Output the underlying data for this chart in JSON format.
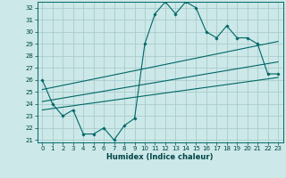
{
  "title": "",
  "xlabel": "Humidex (Indice chaleur)",
  "ylabel": "",
  "background_color": "#cce8e8",
  "grid_color": "#aacccc",
  "line_color": "#006666",
  "xlim": [
    -0.5,
    23.5
  ],
  "ylim": [
    20.8,
    32.5
  ],
  "yticks": [
    21,
    22,
    23,
    24,
    25,
    26,
    27,
    28,
    29,
    30,
    31,
    32
  ],
  "xticks": [
    0,
    1,
    2,
    3,
    4,
    5,
    6,
    7,
    8,
    9,
    10,
    11,
    12,
    13,
    14,
    15,
    16,
    17,
    18,
    19,
    20,
    21,
    22,
    23
  ],
  "main_line_x": [
    0,
    1,
    2,
    3,
    4,
    5,
    6,
    7,
    8,
    9,
    10,
    11,
    12,
    13,
    14,
    15,
    16,
    17,
    18,
    19,
    20,
    21,
    22,
    23
  ],
  "main_line_y": [
    26,
    24,
    23,
    23.5,
    21.5,
    21.5,
    22,
    21,
    22.2,
    22.8,
    29,
    31.5,
    32.5,
    31.5,
    32.5,
    32,
    30,
    29.5,
    30.5,
    29.5,
    29.5,
    29,
    26.5,
    26.5
  ],
  "trend_line1_x": [
    0,
    23
  ],
  "trend_line1_y": [
    23.5,
    26.2
  ],
  "trend_line2_x": [
    0,
    23
  ],
  "trend_line2_y": [
    24.2,
    27.5
  ],
  "trend_line3_x": [
    0,
    23
  ],
  "trend_line3_y": [
    25.2,
    29.2
  ],
  "tick_fontsize": 5.0,
  "xlabel_fontsize": 6.0
}
